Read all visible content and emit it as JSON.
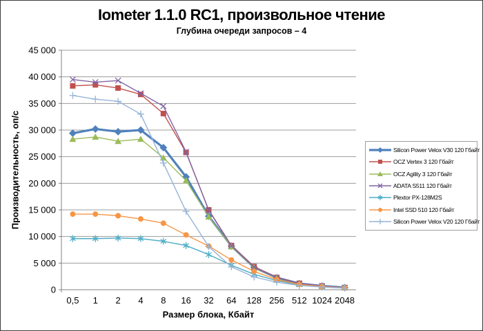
{
  "chart_data": {
    "type": "line",
    "title": "Iometer 1.1.0 RC1, произвольное чтение",
    "subtitle": "Глубина очереди запросов – 4",
    "xlabel": "Размер блока, Кбайт",
    "ylabel": "Производительность,  оп/с",
    "categories": [
      "0,5",
      "1",
      "2",
      "4",
      "8",
      "16",
      "32",
      "64",
      "128",
      "256",
      "512",
      "1024",
      "2048"
    ],
    "ylim": [
      0,
      45000
    ],
    "y_ticks": [
      0,
      5000,
      10000,
      15000,
      20000,
      25000,
      30000,
      35000,
      40000,
      45000
    ],
    "y_tick_labels": [
      "0",
      "5 000",
      "10 000",
      "15 000",
      "20 000",
      "25 000",
      "30 000",
      "35 000",
      "40 000",
      "45 000"
    ],
    "grid": "horizontal",
    "grid_color": "#9c9c9c",
    "axis_color": "#808080",
    "legend_position": "right",
    "series": [
      {
        "name": "Silicon Power Velox V30 120 Гбайт",
        "color": "#4F81BD",
        "marker": "diamond",
        "line_width": 3.2,
        "values": [
          29400,
          30200,
          29700,
          30000,
          26700,
          21200,
          13800,
          8200,
          4200,
          2250,
          1150,
          700,
          400
        ]
      },
      {
        "name": "OCZ Vertex 3 120 Гбайт",
        "color": "#C0504D",
        "marker": "square",
        "line_width": 1.4,
        "values": [
          38300,
          38500,
          37900,
          36700,
          33100,
          25800,
          15000,
          8300,
          4350,
          2300,
          1200,
          700,
          400
        ]
      },
      {
        "name": "OCZ Agility 3 120 Гбайт",
        "color": "#9BBB59",
        "marker": "triangle",
        "line_width": 1.4,
        "values": [
          28300,
          28700,
          27900,
          28300,
          24800,
          20500,
          13700,
          8100,
          4150,
          2200,
          1100,
          650,
          400
        ]
      },
      {
        "name": "ADATA S511 120 Гбайт",
        "color": "#8064A2",
        "marker": "x",
        "line_width": 1.4,
        "values": [
          39500,
          39000,
          39300,
          36900,
          34500,
          25900,
          14900,
          8250,
          4250,
          2250,
          1150,
          700,
          400
        ]
      },
      {
        "name": "Plextor PX-128M2S",
        "color": "#4BACC6",
        "marker": "asterisk",
        "line_width": 1.4,
        "values": [
          9600,
          9600,
          9700,
          9600,
          9100,
          8300,
          6600,
          4600,
          2900,
          1700,
          900,
          550,
          350
        ]
      },
      {
        "name": "Intel SSD 510 120 Гбайт",
        "color": "#F79646",
        "marker": "circle",
        "line_width": 1.4,
        "values": [
          14200,
          14200,
          13900,
          13300,
          12500,
          10300,
          8200,
          5600,
          3450,
          1900,
          1000,
          600,
          350
        ]
      },
      {
        "name": "Silicon Power Velox V20 120 Гбайт",
        "color": "#95B3D7",
        "marker": "plus",
        "line_width": 1.4,
        "values": [
          36500,
          35800,
          35400,
          33000,
          23800,
          14700,
          8100,
          4300,
          2400,
          1400,
          800,
          500,
          300
        ]
      }
    ]
  }
}
